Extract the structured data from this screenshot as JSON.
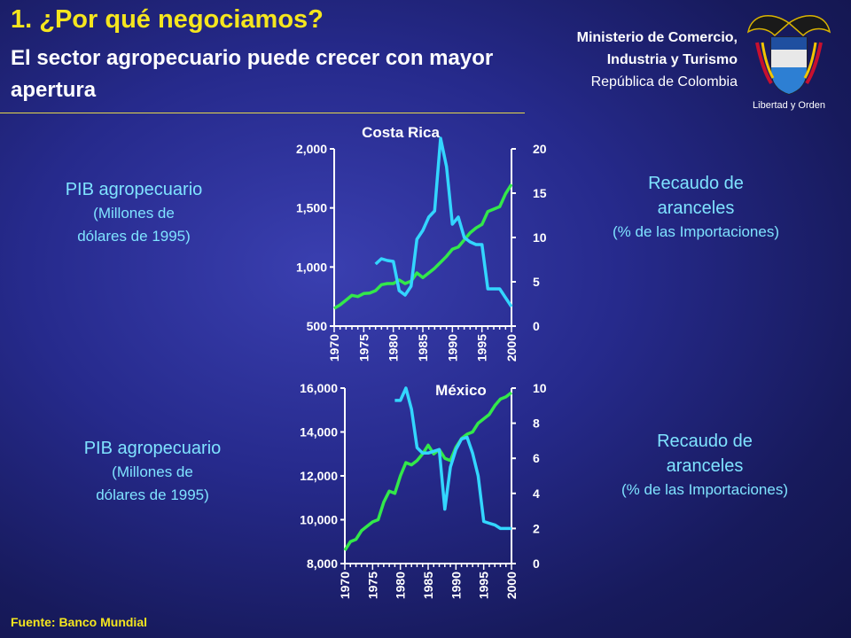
{
  "header": {
    "title": "1. ¿Por qué negociamos?",
    "subtitle": "El sector agropecuario puede crecer con mayor apertura"
  },
  "ministry": {
    "line1": "Ministerio de Comercio,",
    "line2": "Industria y Turismo",
    "line3": "República de Colombia",
    "motto": "Libertad y Orden"
  },
  "labels": {
    "pib_title": "PIB agropecuario",
    "pib_unit1": "(Millones de",
    "pib_unit2": "dólares de 1995)",
    "rec_title1": "Recaudo de",
    "rec_title2": "aranceles",
    "rec_unit": "(% de las Importaciones)"
  },
  "source": "Fuente: Banco Mundial",
  "colors": {
    "pib_line": "#33e84a",
    "tariff_line": "#33d6ff",
    "title": "#f5e61e",
    "axis": "#ffffff"
  },
  "chart_data": [
    {
      "type": "line",
      "title": "Costa Rica",
      "x_ticks": [
        "1970",
        "1975",
        "1980",
        "1985",
        "1990",
        "1995",
        "2000"
      ],
      "left_axis": {
        "ticks": [
          "500",
          "1,000",
          "1,500",
          "2,000"
        ],
        "ylim": [
          500,
          2000
        ]
      },
      "right_axis": {
        "ticks": [
          "0",
          "5",
          "10",
          "15",
          "20"
        ],
        "ylim": [
          0,
          20
        ]
      },
      "series": [
        {
          "axis": "left",
          "x": [
            1970,
            1971,
            1972,
            1973,
            1974,
            1975,
            1976,
            1977,
            1978,
            1979,
            1980,
            1981,
            1982,
            1983,
            1984,
            1985,
            1986,
            1987,
            1988,
            1989,
            1990,
            1991,
            1992,
            1993,
            1994,
            1995,
            1996,
            1997,
            1998,
            1999,
            2000
          ],
          "values": [
            650,
            680,
            720,
            760,
            750,
            775,
            780,
            800,
            850,
            860,
            860,
            890,
            860,
            880,
            950,
            910,
            950,
            990,
            1040,
            1090,
            1150,
            1170,
            1230,
            1290,
            1330,
            1360,
            1470,
            1490,
            1510,
            1620,
            1700
          ]
        },
        {
          "axis": "right",
          "x": [
            1977,
            1978,
            1979,
            1980,
            1981,
            1982,
            1983,
            1984,
            1985,
            1986,
            1987,
            1988,
            1989,
            1990,
            1991,
            1992,
            1993,
            1994,
            1995,
            1996,
            1997,
            1998,
            1999,
            2000
          ],
          "values": [
            7,
            7.6,
            7.4,
            7.3,
            4,
            3.5,
            4.5,
            9.8,
            10.8,
            12.3,
            13,
            21.2,
            18,
            11.5,
            12.3,
            10,
            9.5,
            9.2,
            9.2,
            4.2,
            4.2,
            4.2,
            3.2,
            2.2
          ]
        }
      ]
    },
    {
      "type": "line",
      "title": "México",
      "x_ticks": [
        "1970",
        "1975",
        "1980",
        "1985",
        "1990",
        "1995",
        "2000"
      ],
      "left_axis": {
        "ticks": [
          "8,000",
          "10,000",
          "12,000",
          "14,000",
          "16,000"
        ],
        "ylim": [
          8000,
          16000
        ]
      },
      "right_axis": {
        "ticks": [
          "0",
          "2",
          "4",
          "6",
          "8",
          "10"
        ],
        "ylim": [
          0,
          10
        ]
      },
      "series": [
        {
          "axis": "left",
          "x": [
            1970,
            1971,
            1972,
            1973,
            1974,
            1975,
            1976,
            1977,
            1978,
            1979,
            1980,
            1981,
            1982,
            1983,
            1984,
            1985,
            1986,
            1987,
            1988,
            1989,
            1990,
            1991,
            1992,
            1993,
            1994,
            1995,
            1996,
            1997,
            1998,
            1999,
            2000
          ],
          "values": [
            8600,
            9000,
            9100,
            9500,
            9700,
            9900,
            10000,
            10800,
            11300,
            11200,
            12000,
            12600,
            12500,
            12700,
            13000,
            13400,
            13000,
            13200,
            12800,
            12700,
            13300,
            13700,
            13900,
            14000,
            14400,
            14600,
            14800,
            15200,
            15500,
            15600,
            15800
          ]
        },
        {
          "axis": "right",
          "x": [
            1979,
            1980,
            1981,
            1982,
            1983,
            1984,
            1985,
            1986,
            1987,
            1988,
            1989,
            1990,
            1991,
            1992,
            1993,
            1994,
            1995,
            1996,
            1997,
            1998,
            1999,
            2000
          ],
          "values": [
            9.3,
            9.3,
            10,
            8.8,
            6.6,
            6.3,
            6.3,
            6.4,
            6.5,
            3.1,
            5.5,
            6.5,
            7.1,
            7.2,
            6.3,
            5,
            2.4,
            2.3,
            2.2,
            2,
            2,
            2
          ]
        }
      ]
    }
  ]
}
